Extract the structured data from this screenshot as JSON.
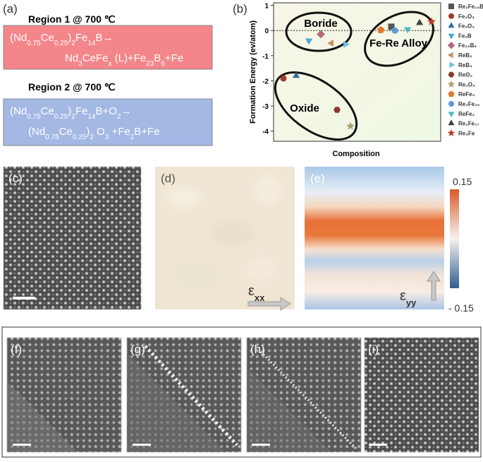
{
  "panel_a": {
    "label": "(a)",
    "region1": {
      "title": "Region 1 @ 700 ℃",
      "line1": [
        {
          "t": "(Nd"
        },
        {
          "s": "0.75"
        },
        {
          "t": "Ce"
        },
        {
          "s": "0.25"
        },
        {
          "t": ")"
        },
        {
          "s": "2"
        },
        {
          "t": "Fe"
        },
        {
          "s": "14"
        },
        {
          "t": "B→"
        }
      ],
      "line2": [
        {
          "t": "Nd"
        },
        {
          "s": "3"
        },
        {
          "t": "CeFe"
        },
        {
          "s": "x"
        },
        {
          "t": " (L)+Fe"
        },
        {
          "s": "23"
        },
        {
          "t": "B"
        },
        {
          "s": "6"
        },
        {
          "t": "+Fe"
        }
      ]
    },
    "region2": {
      "title": "Region 2 @ 700 ℃",
      "line1": [
        {
          "t": "(Nd"
        },
        {
          "s": "0.75"
        },
        {
          "t": "Ce"
        },
        {
          "s": "0.25"
        },
        {
          "t": ")"
        },
        {
          "s": "2"
        },
        {
          "t": "Fe"
        },
        {
          "s": "14"
        },
        {
          "t": "B+O"
        },
        {
          "s": "2"
        },
        {
          "t": "→"
        }
      ],
      "line2": [
        {
          "t": "(Nd"
        },
        {
          "s": "0.75"
        },
        {
          "t": "Ce"
        },
        {
          "s": "0.25"
        },
        {
          "t": ")"
        },
        {
          "s": "2"
        },
        {
          "t": " O"
        },
        {
          "s": "3"
        },
        {
          "t": " +Fe"
        },
        {
          "s": "2"
        },
        {
          "t": "B+Fe"
        }
      ]
    }
  },
  "chart_data": {
    "type": "scatter",
    "label": "(b)",
    "ylabel": "Formation Energy (ev/atom)",
    "xlabel": "Composition",
    "ylim": [
      -4.4,
      1.1
    ],
    "yticks": [
      1,
      0,
      -1,
      -2,
      -3,
      -4
    ],
    "annotations": [
      "Boride",
      "Fe-Re Alloy",
      "Oxide"
    ],
    "series": [
      {
        "name": "Re₂Fe₁₄B",
        "color": "#555555",
        "marker": "square",
        "values": [
          0.15
        ]
      },
      {
        "name": "Fe₂O₃",
        "color": "#a0392b",
        "marker": "circle",
        "values": [
          -1.9
        ]
      },
      {
        "name": "Fe₃O₄",
        "color": "#2f6e9e",
        "marker": "triangle-up",
        "values": [
          -1.8
        ]
      },
      {
        "name": "Fe₂B",
        "color": "#4aa8d8",
        "marker": "triangle-down",
        "values": [
          -0.4
        ]
      },
      {
        "name": "Fe₂₃B₆",
        "color": "#b06a78",
        "marker": "diamond",
        "values": [
          -0.15
        ]
      },
      {
        "name": "ReB₂",
        "color": "#c89060",
        "marker": "triangle-left",
        "values": [
          -0.5
        ]
      },
      {
        "name": "ReB₄",
        "color": "#6cc4e0",
        "marker": "triangle-right",
        "values": [
          -0.55
        ]
      },
      {
        "name": "ReO₂",
        "color": "#8a3a2a",
        "marker": "hexagon",
        "values": [
          -3.15
        ]
      },
      {
        "name": "Re₂O₃",
        "color": "#a8a070",
        "marker": "star",
        "values": [
          -3.8
        ]
      },
      {
        "name": "ReFe₅",
        "color": "#e07830",
        "marker": "pentagon",
        "values": [
          0.02
        ]
      },
      {
        "name": "Re₂Fe₂₉",
        "color": "#5a9ad8",
        "marker": "circle",
        "values": [
          0.0
        ]
      },
      {
        "name": "ReFe₂",
        "color": "#50b8c8",
        "marker": "triangle-down",
        "values": [
          0.05
        ]
      },
      {
        "name": "Re₂Fe₁₇",
        "color": "#404040",
        "marker": "triangle-up",
        "values": [
          0.3
        ]
      },
      {
        "name": "Re₃Fe",
        "color": "#c0392b",
        "marker": "star",
        "values": [
          0.35
        ]
      }
    ]
  },
  "panels": {
    "c": "(c)",
    "d": "(d)",
    "e": "(e)",
    "f": "(f)",
    "g": "(g)",
    "h": "(h)",
    "i": "(i)"
  },
  "strain": {
    "xx": {
      "main": "ε",
      "sub": "xx"
    },
    "yy": {
      "main": "ε",
      "sub": "yy"
    }
  },
  "colorbar": {
    "max": "0.15",
    "min": "- 0.15"
  }
}
